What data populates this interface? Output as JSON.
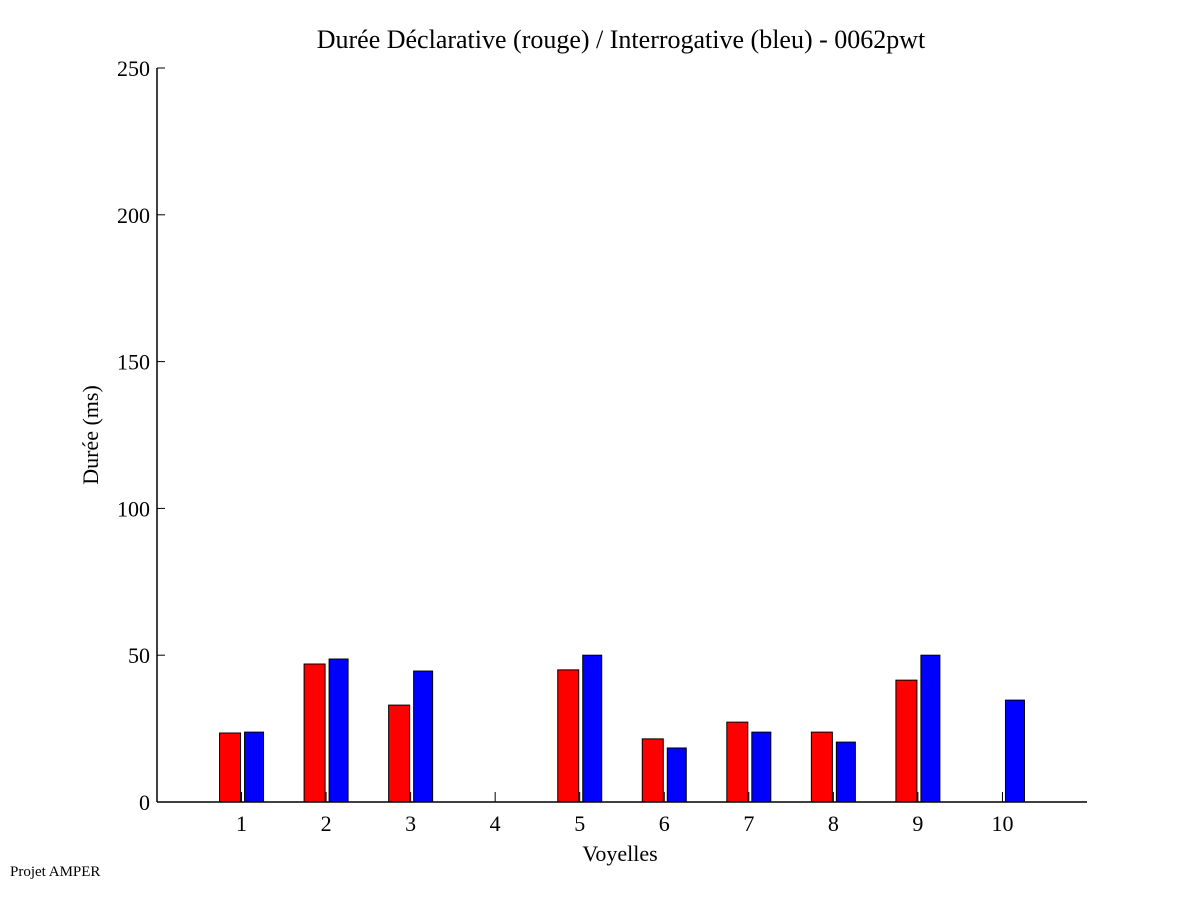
{
  "chart_data": {
    "type": "bar",
    "title": "Durée Déclarative (rouge) / Interrogative (bleu) - 0062pwt",
    "xlabel": "Voyelles",
    "ylabel": "Durée (ms)",
    "categories": [
      "1",
      "2",
      "3",
      "4",
      "5",
      "6",
      "7",
      "8",
      "9",
      "10"
    ],
    "xlim": [
      0,
      11
    ],
    "ylim": [
      0,
      250
    ],
    "yticks": [
      0,
      50,
      100,
      150,
      200,
      250
    ],
    "grid": false,
    "series": [
      {
        "name": "Déclarative",
        "color": "#ff0000",
        "values": [
          23.5,
          47,
          33,
          0,
          45,
          21.5,
          27.2,
          23.8,
          41.5,
          0
        ]
      },
      {
        "name": "Interrogative",
        "color": "#0000ff",
        "values": [
          23.8,
          48.7,
          44.6,
          0,
          50,
          18.4,
          23.8,
          20.4,
          50,
          34.7
        ]
      }
    ]
  },
  "footer": "Projet AMPER"
}
